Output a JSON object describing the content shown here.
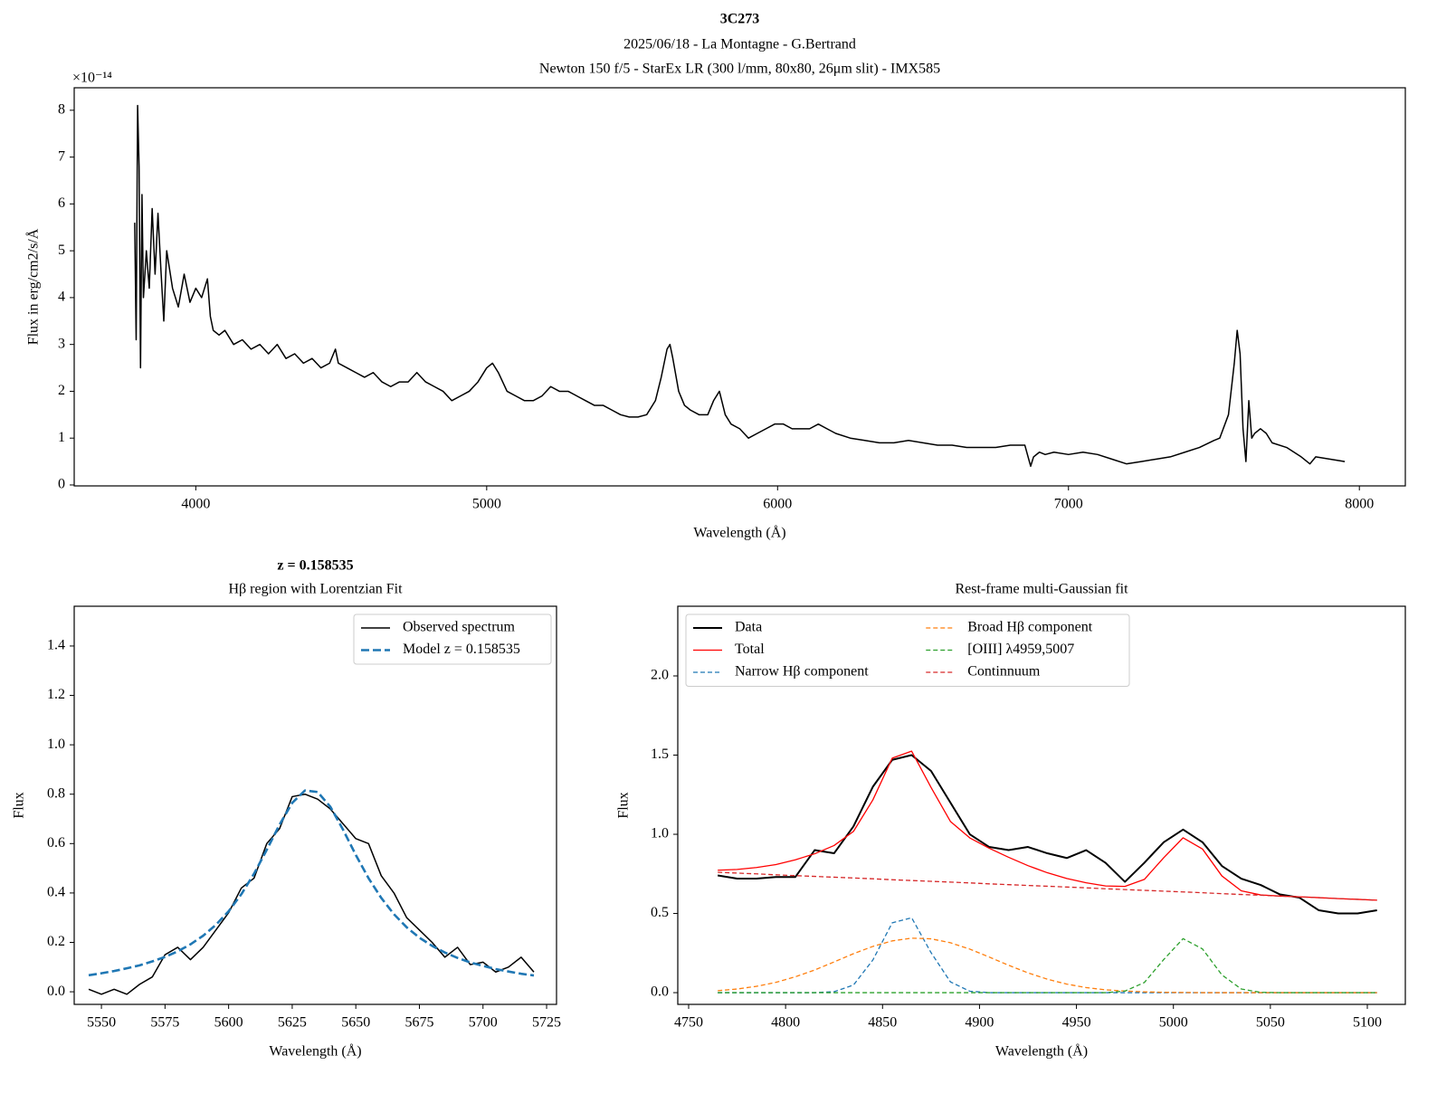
{
  "chart_data": [
    {
      "type": "line",
      "title": "3C273",
      "subtitle": [
        "2025/06/18 - La Montagne - G.Bertrand",
        "Newton 150 f/5 - StarEx LR (300 l/mm, 80x80, 26μm slit) - IMX585"
      ],
      "xlabel": "Wavelength (Å)",
      "ylabel": "Flux in erg/cm2/s/Å",
      "offset_text": "×10⁻¹⁴",
      "xlim": [
        3582,
        8158
      ],
      "ylim": [
        -0.02,
        8.48
      ],
      "xticks": [
        4000,
        5000,
        6000,
        7000,
        8000
      ],
      "yticks": [
        0,
        1,
        2,
        3,
        4,
        5,
        6,
        7,
        8
      ],
      "x": [
        3790,
        3795,
        3800,
        3805,
        3810,
        3815,
        3820,
        3830,
        3840,
        3850,
        3860,
        3870,
        3880,
        3890,
        3900,
        3920,
        3940,
        3960,
        3980,
        4000,
        4020,
        4040,
        4050,
        4060,
        4080,
        4100,
        4130,
        4160,
        4190,
        4220,
        4250,
        4280,
        4310,
        4340,
        4370,
        4400,
        4430,
        4460,
        4480,
        4490,
        4520,
        4550,
        4580,
        4610,
        4640,
        4670,
        4700,
        4730,
        4760,
        4790,
        4820,
        4850,
        4880,
        4910,
        4940,
        4970,
        5000,
        5020,
        5040,
        5070,
        5100,
        5130,
        5160,
        5190,
        5220,
        5250,
        5280,
        5310,
        5340,
        5370,
        5400,
        5430,
        5460,
        5490,
        5520,
        5550,
        5580,
        5600,
        5620,
        5630,
        5640,
        5660,
        5680,
        5700,
        5730,
        5760,
        5780,
        5800,
        5820,
        5840,
        5870,
        5900,
        5930,
        5960,
        5990,
        6020,
        6050,
        6080,
        6110,
        6140,
        6170,
        6200,
        6250,
        6300,
        6350,
        6400,
        6450,
        6500,
        6550,
        6600,
        6650,
        6700,
        6750,
        6800,
        6850,
        6870,
        6880,
        6900,
        6920,
        6950,
        7000,
        7050,
        7100,
        7150,
        7200,
        7250,
        7300,
        7350,
        7400,
        7450,
        7500,
        7520,
        7550,
        7570,
        7580,
        7590,
        7600,
        7610,
        7620,
        7630,
        7640,
        7660,
        7680,
        7700,
        7750,
        7800,
        7830,
        7850,
        7900,
        7950
      ],
      "series": [
        {
          "color": "#000000",
          "width": 1.5,
          "values": [
            5.6,
            3.1,
            8.1,
            6.8,
            2.5,
            6.2,
            4.0,
            5.0,
            4.2,
            5.9,
            4.5,
            5.8,
            4.6,
            3.5,
            5.0,
            4.2,
            3.8,
            4.5,
            3.9,
            4.2,
            4.0,
            4.4,
            3.6,
            3.3,
            3.2,
            3.3,
            3.0,
            3.1,
            2.9,
            3.0,
            2.8,
            3.0,
            2.7,
            2.8,
            2.6,
            2.7,
            2.5,
            2.6,
            2.9,
            2.6,
            2.5,
            2.4,
            2.3,
            2.4,
            2.2,
            2.1,
            2.2,
            2.2,
            2.4,
            2.2,
            2.1,
            2.0,
            1.8,
            1.9,
            2.0,
            2.2,
            2.5,
            2.6,
            2.4,
            2.0,
            1.9,
            1.8,
            1.8,
            1.9,
            2.1,
            2.0,
            2.0,
            1.9,
            1.8,
            1.7,
            1.7,
            1.6,
            1.5,
            1.45,
            1.45,
            1.5,
            1.8,
            2.3,
            2.9,
            3.0,
            2.7,
            2.0,
            1.7,
            1.6,
            1.5,
            1.5,
            1.8,
            2.0,
            1.5,
            1.3,
            1.2,
            1.0,
            1.1,
            1.2,
            1.3,
            1.3,
            1.2,
            1.2,
            1.2,
            1.3,
            1.2,
            1.1,
            1.0,
            0.95,
            0.9,
            0.9,
            0.95,
            0.9,
            0.85,
            0.85,
            0.8,
            0.8,
            0.8,
            0.85,
            0.85,
            0.4,
            0.6,
            0.7,
            0.65,
            0.7,
            0.65,
            0.7,
            0.65,
            0.55,
            0.45,
            0.5,
            0.55,
            0.6,
            0.7,
            0.8,
            0.95,
            1.0,
            1.5,
            2.6,
            3.3,
            2.8,
            1.2,
            0.5,
            1.8,
            1.0,
            1.1,
            1.2,
            1.1,
            0.9,
            0.8,
            0.6,
            0.45,
            0.6,
            0.55,
            0.5
          ]
        }
      ]
    },
    {
      "type": "line",
      "title": "z = 0.158535",
      "subtitle": [
        "Hβ region with Lorentzian Fit"
      ],
      "xlabel": "Wavelength (Å)",
      "ylabel": "Flux",
      "xlim": [
        5539.3,
        5728.9
      ],
      "ylim": [
        -0.051,
        1.561
      ],
      "xticks": [
        5550,
        5575,
        5600,
        5625,
        5650,
        5675,
        5700,
        5725
      ],
      "yticks": [
        {
          "value": 0,
          "label": "0.0"
        },
        {
          "value": 0.2,
          "label": "0.2"
        },
        {
          "value": 0.4,
          "label": "0.4"
        },
        {
          "value": 0.6,
          "label": "0.6"
        },
        {
          "value": 0.8,
          "label": "0.8"
        },
        {
          "value": 1,
          "label": "1.0"
        },
        {
          "value": 1.2,
          "label": "1.2"
        },
        {
          "value": 1.4,
          "label": "1.4"
        }
      ],
      "legend": "upper right",
      "x": [
        5545,
        5550,
        5555,
        5560,
        5565,
        5570,
        5575,
        5580,
        5585,
        5590,
        5595,
        5600,
        5605,
        5610,
        5615,
        5620,
        5625,
        5630,
        5635,
        5640,
        5645,
        5650,
        5655,
        5660,
        5665,
        5670,
        5675,
        5680,
        5685,
        5690,
        5695,
        5700,
        5705,
        5710,
        5715,
        5720
      ],
      "series": [
        {
          "name": "Observed spectrum",
          "color": "#000000",
          "width": 1.5,
          "values": [
            0.01,
            -0.01,
            0.01,
            -0.01,
            0.03,
            0.06,
            0.15,
            0.18,
            0.13,
            0.18,
            0.25,
            0.32,
            0.42,
            0.46,
            0.6,
            0.66,
            0.79,
            0.8,
            0.78,
            0.74,
            0.68,
            0.62,
            0.6,
            0.47,
            0.4,
            0.3,
            0.25,
            0.2,
            0.14,
            0.18,
            0.11,
            0.12,
            0.08,
            0.1,
            0.14,
            0.08
          ]
        },
        {
          "name": "Model z = 0.158535",
          "color": "#1f77b4",
          "width": 2.6,
          "dashed": true,
          "values": [
            0.067,
            0.075,
            0.084,
            0.095,
            0.107,
            0.123,
            0.141,
            0.164,
            0.192,
            0.227,
            0.271,
            0.326,
            0.395,
            0.478,
            0.575,
            0.676,
            0.765,
            0.815,
            0.809,
            0.749,
            0.656,
            0.554,
            0.46,
            0.38,
            0.314,
            0.261,
            0.219,
            0.186,
            0.159,
            0.137,
            0.119,
            0.105,
            0.092,
            0.082,
            0.073,
            0.066
          ]
        }
      ]
    },
    {
      "type": "line",
      "title": "Rest-frame multi-Gaussian fit",
      "xlabel": "Wavelength (Å)",
      "ylabel": "Flux",
      "xlim": [
        4744.4,
        5119.6
      ],
      "ylim": [
        -0.074,
        2.44
      ],
      "xticks": [
        4750,
        4800,
        4850,
        4900,
        4950,
        5000,
        5050,
        5100
      ],
      "yticks": [
        {
          "value": 0,
          "label": "0.0"
        },
        {
          "value": 0.5,
          "label": "0.5"
        },
        {
          "value": 1,
          "label": "1.0"
        },
        {
          "value": 1.5,
          "label": "1.5"
        },
        {
          "value": 2,
          "label": "2.0"
        }
      ],
      "legend": "upper left",
      "legend_columns": 2,
      "x": [
        4765,
        4775,
        4785,
        4795,
        4805,
        4815,
        4825,
        4835,
        4845,
        4855,
        4865,
        4875,
        4885,
        4895,
        4905,
        4915,
        4925,
        4935,
        4945,
        4955,
        4965,
        4975,
        4985,
        4995,
        5005,
        5015,
        5025,
        5035,
        5045,
        5055,
        5065,
        5075,
        5085,
        5095,
        5105
      ],
      "series": [
        {
          "name": "Data",
          "color": "#000000",
          "width": 2,
          "values": [
            0.74,
            0.72,
            0.72,
            0.73,
            0.73,
            0.9,
            0.88,
            1.05,
            1.3,
            1.47,
            1.5,
            1.4,
            1.2,
            1.0,
            0.92,
            0.9,
            0.92,
            0.88,
            0.85,
            0.9,
            0.82,
            0.7,
            0.82,
            0.95,
            1.03,
            0.95,
            0.8,
            0.72,
            0.68,
            0.62,
            0.6,
            0.52,
            0.5,
            0.5,
            0.52
          ]
        },
        {
          "name": "Total",
          "color": "#ff0000",
          "width": 1.3,
          "values": [
            0.773,
            0.778,
            0.79,
            0.809,
            0.839,
            0.877,
            0.929,
            1.018,
            1.217,
            1.481,
            1.525,
            1.296,
            1.081,
            0.977,
            0.912,
            0.855,
            0.802,
            0.757,
            0.721,
            0.694,
            0.674,
            0.671,
            0.715,
            0.852,
            0.978,
            0.907,
            0.737,
            0.643,
            0.617,
            0.61,
            0.605,
            0.6,
            0.594,
            0.589,
            0.584
          ]
        },
        {
          "name": "Narrow Hβ component",
          "color": "#1f77b4",
          "width": 1.3,
          "dashed": true,
          "values": [
            0,
            0,
            0,
            0,
            0,
            0,
            0.006,
            0.048,
            0.206,
            0.441,
            0.473,
            0.253,
            0.068,
            0.009,
            0,
            0,
            0,
            0,
            0,
            0,
            0,
            0,
            0,
            0,
            0,
            0,
            0,
            0,
            0,
            0,
            0,
            0,
            0,
            0,
            0
          ]
        },
        {
          "name": "Broad Hβ component",
          "color": "#ff7f0e",
          "width": 1.3,
          "dashed": true,
          "values": [
            0.0125,
            0.023,
            0.04,
            0.065,
            0.1,
            0.143,
            0.194,
            0.246,
            0.292,
            0.327,
            0.344,
            0.34,
            0.315,
            0.275,
            0.225,
            0.173,
            0.125,
            0.085,
            0.054,
            0.032,
            0.018,
            0.01,
            0.005,
            0.002,
            0.001,
            0,
            0,
            0,
            0,
            0,
            0,
            0,
            0,
            0,
            0
          ]
        },
        {
          "name": "[OIII] λ4959,5007",
          "color": "#2ca02c",
          "width": 1.3,
          "dashed": true,
          "values": [
            0,
            0,
            0,
            0,
            0,
            0,
            0,
            0,
            0,
            0,
            0,
            0,
            0,
            0,
            0,
            0,
            0,
            0,
            0,
            0,
            0,
            0.01,
            0.064,
            0.209,
            0.341,
            0.276,
            0.112,
            0.023,
            0.002,
            0,
            0,
            0,
            0,
            0,
            0
          ]
        },
        {
          "name": "Continnuum",
          "color": "#d62728",
          "width": 1.3,
          "dashed": true,
          "values": [
            0.76,
            0.755,
            0.75,
            0.744,
            0.739,
            0.734,
            0.729,
            0.724,
            0.719,
            0.713,
            0.708,
            0.703,
            0.698,
            0.693,
            0.687,
            0.682,
            0.677,
            0.672,
            0.667,
            0.662,
            0.656,
            0.651,
            0.646,
            0.641,
            0.636,
            0.631,
            0.625,
            0.62,
            0.615,
            0.61,
            0.605,
            0.6,
            0.594,
            0.589,
            0.584
          ]
        }
      ]
    }
  ]
}
